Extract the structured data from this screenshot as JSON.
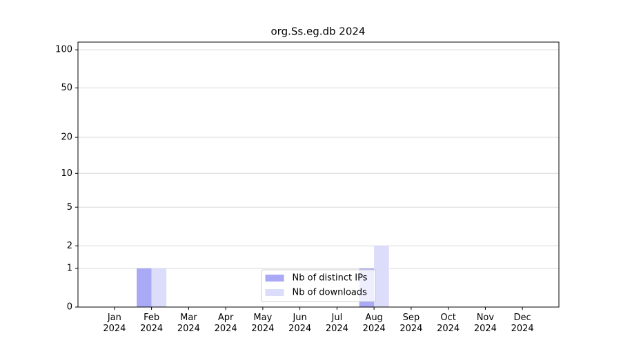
{
  "chart_data": {
    "type": "bar",
    "title": "org.Ss.eg.db 2024",
    "categories": [
      "Jan\n2024",
      "Feb\n2024",
      "Mar\n2024",
      "Apr\n2024",
      "May\n2024",
      "Jun\n2024",
      "Jul\n2024",
      "Aug\n2024",
      "Sep\n2024",
      "Oct\n2024",
      "Nov\n2024",
      "Dec\n2024"
    ],
    "series": [
      {
        "name": "Nb of distinct IPs",
        "color": "#a9a9f5",
        "values": [
          0,
          1,
          0,
          0,
          0,
          0,
          0,
          1,
          0,
          0,
          0,
          0
        ]
      },
      {
        "name": "Nb of downloads",
        "color": "#dcdcfb",
        "values": [
          0,
          1,
          0,
          0,
          0,
          0,
          0,
          2,
          0,
          0,
          0,
          0
        ]
      }
    ],
    "yscale": "log1p",
    "ylim": [
      0,
      115
    ],
    "yticks": [
      0,
      1,
      2,
      5,
      10,
      20,
      50,
      100
    ],
    "grid": true,
    "legend": "lower center"
  }
}
